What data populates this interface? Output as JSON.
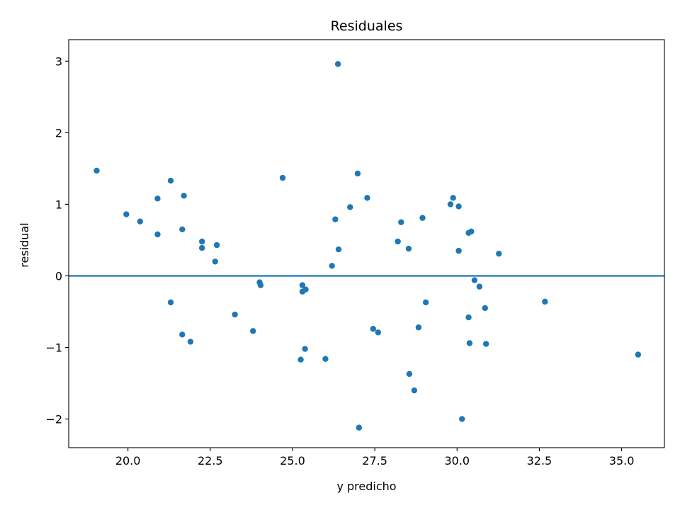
{
  "chart_data": {
    "type": "scatter",
    "title": "Residuales",
    "xlabel": "y predicho",
    "ylabel": "residual",
    "xlim": [
      18.2,
      36.3
    ],
    "ylim": [
      -2.4,
      3.3
    ],
    "xticks": [
      20.0,
      22.5,
      25.0,
      27.5,
      30.0,
      32.5,
      35.0
    ],
    "xtick_labels": [
      "20.0",
      "22.5",
      "25.0",
      "27.5",
      "30.0",
      "32.5",
      "35.0"
    ],
    "yticks": [
      -2,
      -1,
      0,
      1,
      2,
      3
    ],
    "ytick_labels": [
      "−2",
      "−1",
      "0",
      "1",
      "2",
      "3"
    ],
    "grid": false,
    "hline": 0,
    "colors": {
      "points": "#1f77b4",
      "hline": "#1f77b4",
      "axes": "#000000"
    },
    "points": [
      {
        "x": 19.05,
        "y": 1.47
      },
      {
        "x": 19.95,
        "y": 0.86
      },
      {
        "x": 20.37,
        "y": 0.76
      },
      {
        "x": 20.9,
        "y": 1.08
      },
      {
        "x": 20.9,
        "y": 0.58
      },
      {
        "x": 21.3,
        "y": 1.33
      },
      {
        "x": 21.3,
        "y": -0.37
      },
      {
        "x": 21.65,
        "y": 0.65
      },
      {
        "x": 21.65,
        "y": -0.82
      },
      {
        "x": 21.7,
        "y": 1.12
      },
      {
        "x": 21.9,
        "y": -0.92
      },
      {
        "x": 22.25,
        "y": 0.48
      },
      {
        "x": 22.25,
        "y": 0.39
      },
      {
        "x": 22.65,
        "y": 0.2
      },
      {
        "x": 22.7,
        "y": 0.43
      },
      {
        "x": 23.25,
        "y": -0.54
      },
      {
        "x": 23.8,
        "y": -0.77
      },
      {
        "x": 24.0,
        "y": -0.09
      },
      {
        "x": 24.03,
        "y": -0.13
      },
      {
        "x": 24.7,
        "y": 1.37
      },
      {
        "x": 25.25,
        "y": -1.17
      },
      {
        "x": 25.3,
        "y": -0.13
      },
      {
        "x": 25.3,
        "y": -0.22
      },
      {
        "x": 25.4,
        "y": -0.19
      },
      {
        "x": 25.38,
        "y": -1.02
      },
      {
        "x": 26.0,
        "y": -1.16
      },
      {
        "x": 26.2,
        "y": 0.14
      },
      {
        "x": 26.3,
        "y": 0.79
      },
      {
        "x": 26.38,
        "y": 2.96
      },
      {
        "x": 26.4,
        "y": 0.37
      },
      {
        "x": 26.75,
        "y": 0.96
      },
      {
        "x": 26.98,
        "y": 1.43
      },
      {
        "x": 27.02,
        "y": -2.12
      },
      {
        "x": 27.27,
        "y": 1.09
      },
      {
        "x": 27.45,
        "y": -0.74
      },
      {
        "x": 27.6,
        "y": -0.79
      },
      {
        "x": 28.2,
        "y": 0.48
      },
      {
        "x": 28.3,
        "y": 0.75
      },
      {
        "x": 28.53,
        "y": 0.38
      },
      {
        "x": 28.55,
        "y": -1.37
      },
      {
        "x": 28.7,
        "y": -1.6
      },
      {
        "x": 28.83,
        "y": -0.72
      },
      {
        "x": 28.95,
        "y": 0.81
      },
      {
        "x": 29.05,
        "y": -0.37
      },
      {
        "x": 29.8,
        "y": 1.0
      },
      {
        "x": 29.88,
        "y": 1.09
      },
      {
        "x": 30.05,
        "y": 0.97
      },
      {
        "x": 30.05,
        "y": 0.35
      },
      {
        "x": 30.15,
        "y": -2.0
      },
      {
        "x": 30.35,
        "y": 0.6
      },
      {
        "x": 30.35,
        "y": -0.58
      },
      {
        "x": 30.38,
        "y": -0.94
      },
      {
        "x": 30.43,
        "y": 0.62
      },
      {
        "x": 30.53,
        "y": -0.06
      },
      {
        "x": 30.68,
        "y": -0.15
      },
      {
        "x": 30.85,
        "y": -0.45
      },
      {
        "x": 30.88,
        "y": -0.95
      },
      {
        "x": 31.27,
        "y": 0.31
      },
      {
        "x": 32.67,
        "y": -0.36
      },
      {
        "x": 35.5,
        "y": -1.1
      }
    ]
  }
}
